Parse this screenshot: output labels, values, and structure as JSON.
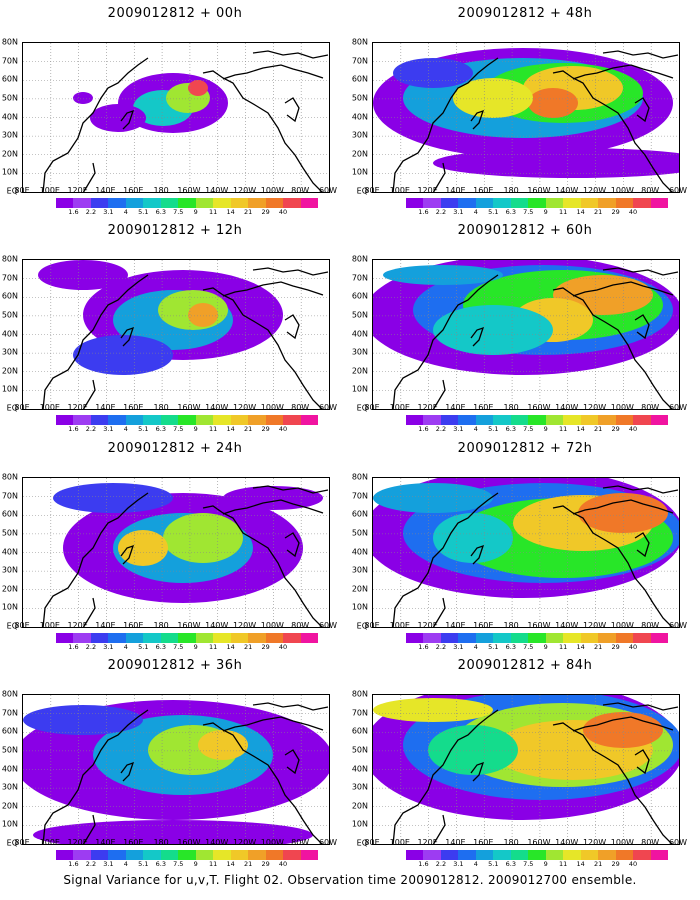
{
  "caption": "Signal Variance for u,v,T. Flight 02. Observation time 2009012812. 2009012700 ensemble.",
  "lat_labels": [
    "80N",
    "70N",
    "60N",
    "50N",
    "40N",
    "30N",
    "20N",
    "10N",
    "EQ"
  ],
  "lon_labels": [
    "80E",
    "100E",
    "120E",
    "140E",
    "160E",
    "180",
    "160W",
    "140W",
    "120W",
    "100W",
    "80W",
    "60W"
  ],
  "colorbar": {
    "labels": [
      "1.6",
      "2.2",
      "3.1",
      "4",
      "5.1",
      "6.3",
      "7.5",
      "9",
      "11",
      "14",
      "21",
      "29",
      "40"
    ],
    "colors": [
      "#8a00e6",
      "#9d3cf2",
      "#3c3cf0",
      "#1e6ef0",
      "#14a0dc",
      "#14c8c8",
      "#14dc8c",
      "#28e628",
      "#a0e632",
      "#e6e628",
      "#f0c828",
      "#f0a028",
      "#f07828",
      "#f04650",
      "#f014a0"
    ]
  },
  "panels": [
    {
      "id": "p00",
      "title": "2009012812 + 00h",
      "col": 0,
      "row": 0
    },
    {
      "id": "p48",
      "title": "2009012812 + 48h",
      "col": 1,
      "row": 0
    },
    {
      "id": "p12",
      "title": "2009012812 + 12h",
      "col": 0,
      "row": 1
    },
    {
      "id": "p60",
      "title": "2009012812 + 60h",
      "col": 1,
      "row": 1
    },
    {
      "id": "p24",
      "title": "2009012812 + 24h",
      "col": 0,
      "row": 2
    },
    {
      "id": "p72",
      "title": "2009012812 + 72h",
      "col": 1,
      "row": 2
    },
    {
      "id": "p36",
      "title": "2009012812 + 36h",
      "col": 0,
      "row": 3
    },
    {
      "id": "p84",
      "title": "2009012812 + 84h",
      "col": 1,
      "row": 3
    }
  ]
}
